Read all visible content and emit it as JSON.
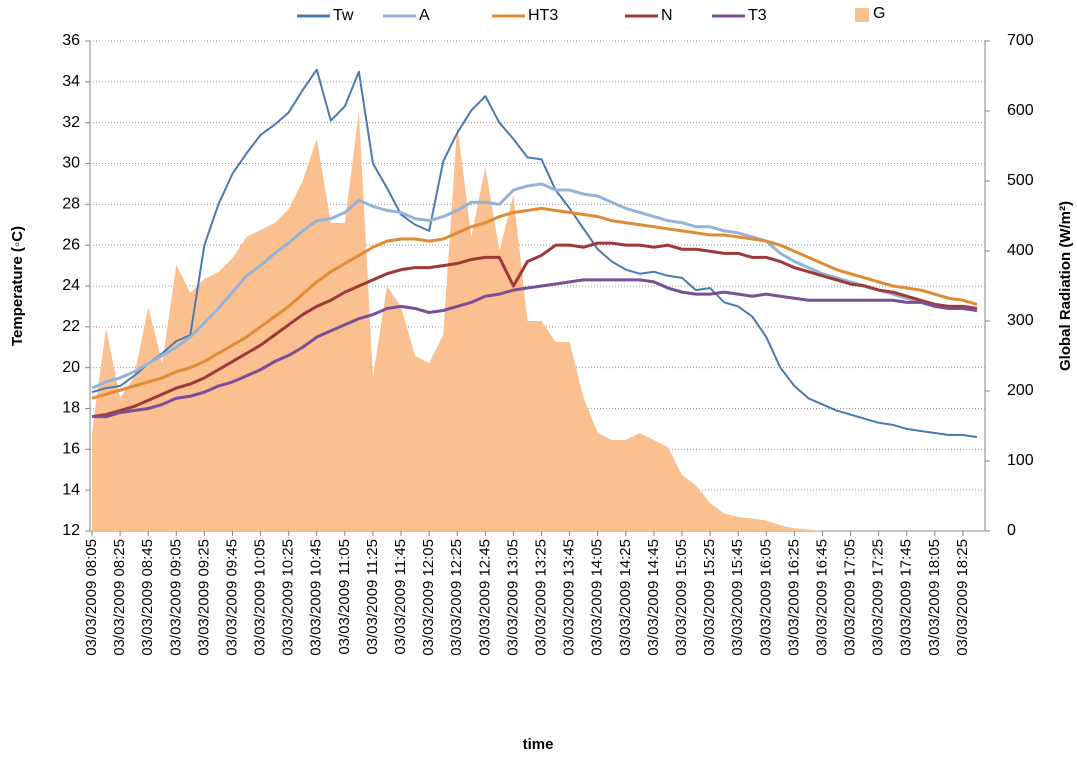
{
  "chart_data": {
    "type": "line",
    "x_label": "time",
    "y_label": "Temperature (◦C)",
    "y2_label": "Global Radiation (W/m²)",
    "categories": [
      "03/03/2009 08:05",
      null,
      "03/03/2009 08:25",
      null,
      "03/03/2009 08:45",
      null,
      "03/03/2009 09:05",
      null,
      "03/03/2009 09:25",
      null,
      "03/03/2009 09:45",
      null,
      "03/03/2009 10:05",
      null,
      "03/03/2009 10:25",
      null,
      "03/03/2009 10:45",
      null,
      "03/03/2009 11:05",
      null,
      "03/03/2009 11:25",
      null,
      "03/03/2009 11:45",
      null,
      "03/03/2009 12:05",
      null,
      "03/03/2009 12:25",
      null,
      "03/03/2009 12:45",
      null,
      "03/03/2009 13:05",
      null,
      "03/03/2009 13:25",
      null,
      "03/03/2009 13:45",
      null,
      "03/03/2009 14:05",
      null,
      "03/03/2009 14:25",
      null,
      "03/03/2009 14:45",
      null,
      "03/03/2009 15:05",
      null,
      "03/03/2009 15:25",
      null,
      "03/03/2009 15:45",
      null,
      "03/03/2009 16:05",
      null,
      "03/03/2009 16:25",
      null,
      "03/03/2009 16:45",
      null,
      "03/03/2009 17:05",
      null,
      "03/03/2009 17:25",
      null,
      "03/03/2009 17:45",
      null,
      "03/03/2009 18:05",
      null,
      "03/03/2009 18:25",
      null
    ],
    "ylim": [
      12,
      36
    ],
    "yticks": [
      12,
      14,
      16,
      18,
      20,
      22,
      24,
      26,
      28,
      30,
      32,
      34,
      36
    ],
    "y2lim": [
      0,
      700
    ],
    "y2ticks": [
      0,
      100,
      200,
      300,
      400,
      500,
      600,
      700
    ],
    "grid": true,
    "legend": "top",
    "series": [
      {
        "name": "G",
        "type": "area",
        "axis": "y2",
        "color": "#fac090",
        "values": [
          140,
          290,
          190,
          220,
          320,
          240,
          380,
          340,
          360,
          370,
          390,
          420,
          430,
          440,
          460,
          500,
          560,
          440,
          440,
          600,
          220,
          350,
          320,
          250,
          240,
          280,
          580,
          420,
          520,
          400,
          480,
          300,
          300,
          270,
          270,
          190,
          140,
          130,
          130,
          140,
          130,
          120,
          80,
          65,
          40,
          25,
          20,
          18,
          15,
          8,
          4,
          2,
          0,
          0,
          0,
          0,
          0,
          0,
          0,
          0,
          0,
          0,
          0,
          0
        ]
      },
      {
        "name": "Tw",
        "color": "#4a7ab0",
        "values": [
          18.8,
          19.0,
          19.1,
          19.6,
          20.2,
          20.7,
          21.3,
          21.6,
          26.0,
          28.0,
          29.5,
          30.5,
          31.4,
          31.9,
          32.5,
          33.6,
          34.6,
          32.1,
          32.8,
          34.5,
          30.0,
          28.8,
          27.5,
          27.0,
          26.7,
          30.1,
          31.5,
          32.6,
          33.3,
          32.0,
          31.2,
          30.3,
          30.2,
          28.7,
          27.8,
          26.8,
          25.8,
          25.2,
          24.8,
          24.6,
          24.7,
          24.5,
          24.4,
          23.8,
          23.9,
          23.2,
          23.0,
          22.5,
          21.5,
          20.0,
          19.1,
          18.5,
          18.2,
          17.9,
          17.7,
          17.5,
          17.3,
          17.2,
          17.0,
          16.9,
          16.8,
          16.7,
          16.7,
          16.6
        ]
      },
      {
        "name": "A",
        "color": "#95b3d7",
        "values": [
          19.0,
          19.3,
          19.5,
          19.8,
          20.2,
          20.6,
          21.0,
          21.5,
          22.2,
          22.9,
          23.7,
          24.5,
          25.0,
          25.6,
          26.1,
          26.7,
          27.2,
          27.3,
          27.6,
          28.2,
          27.9,
          27.7,
          27.6,
          27.3,
          27.2,
          27.4,
          27.7,
          28.1,
          28.1,
          28.0,
          28.7,
          28.9,
          29.0,
          28.7,
          28.7,
          28.5,
          28.4,
          28.1,
          27.8,
          27.6,
          27.4,
          27.2,
          27.1,
          26.9,
          26.9,
          26.7,
          26.6,
          26.4,
          26.2,
          25.6,
          25.2,
          24.9,
          24.6,
          24.4,
          24.2,
          24.0,
          23.8,
          23.6,
          23.4,
          23.2,
          23.1,
          22.9,
          22.9,
          22.8
        ]
      },
      {
        "name": "HT3",
        "color": "#e28b35",
        "values": [
          18.5,
          18.7,
          18.9,
          19.1,
          19.3,
          19.5,
          19.8,
          20.0,
          20.3,
          20.7,
          21.1,
          21.5,
          22.0,
          22.5,
          23.0,
          23.6,
          24.2,
          24.7,
          25.1,
          25.5,
          25.9,
          26.2,
          26.3,
          26.3,
          26.2,
          26.3,
          26.6,
          26.9,
          27.1,
          27.4,
          27.6,
          27.7,
          27.8,
          27.7,
          27.6,
          27.5,
          27.4,
          27.2,
          27.1,
          27.0,
          26.9,
          26.8,
          26.7,
          26.6,
          26.5,
          26.5,
          26.4,
          26.3,
          26.2,
          26.0,
          25.7,
          25.4,
          25.1,
          24.8,
          24.6,
          24.4,
          24.2,
          24.0,
          23.9,
          23.8,
          23.6,
          23.4,
          23.3,
          23.1
        ]
      },
      {
        "name": "N",
        "color": "#a0383a",
        "values": [
          17.6,
          17.7,
          17.9,
          18.1,
          18.4,
          18.7,
          19.0,
          19.2,
          19.5,
          19.9,
          20.3,
          20.7,
          21.1,
          21.6,
          22.1,
          22.6,
          23.0,
          23.3,
          23.7,
          24.0,
          24.3,
          24.6,
          24.8,
          24.9,
          24.9,
          25.0,
          25.1,
          25.3,
          25.4,
          25.4,
          24.0,
          25.2,
          25.5,
          26.0,
          26.0,
          25.9,
          26.1,
          26.1,
          26.0,
          26.0,
          25.9,
          26.0,
          25.8,
          25.8,
          25.7,
          25.6,
          25.6,
          25.4,
          25.4,
          25.2,
          24.9,
          24.7,
          24.5,
          24.3,
          24.1,
          24.0,
          23.8,
          23.7,
          23.5,
          23.3,
          23.1,
          23.0,
          23.0,
          22.9
        ]
      },
      {
        "name": "T3",
        "color": "#7a4f96",
        "values": [
          17.6,
          17.6,
          17.8,
          17.9,
          18.0,
          18.2,
          18.5,
          18.6,
          18.8,
          19.1,
          19.3,
          19.6,
          19.9,
          20.3,
          20.6,
          21.0,
          21.5,
          21.8,
          22.1,
          22.4,
          22.6,
          22.9,
          23.0,
          22.9,
          22.7,
          22.8,
          23.0,
          23.2,
          23.5,
          23.6,
          23.8,
          23.9,
          24.0,
          24.1,
          24.2,
          24.3,
          24.3,
          24.3,
          24.3,
          24.3,
          24.2,
          23.9,
          23.7,
          23.6,
          23.6,
          23.7,
          23.6,
          23.5,
          23.6,
          23.5,
          23.4,
          23.3,
          23.3,
          23.3,
          23.3,
          23.3,
          23.3,
          23.3,
          23.2,
          23.2,
          23.0,
          22.9,
          22.9,
          22.8
        ]
      }
    ]
  }
}
